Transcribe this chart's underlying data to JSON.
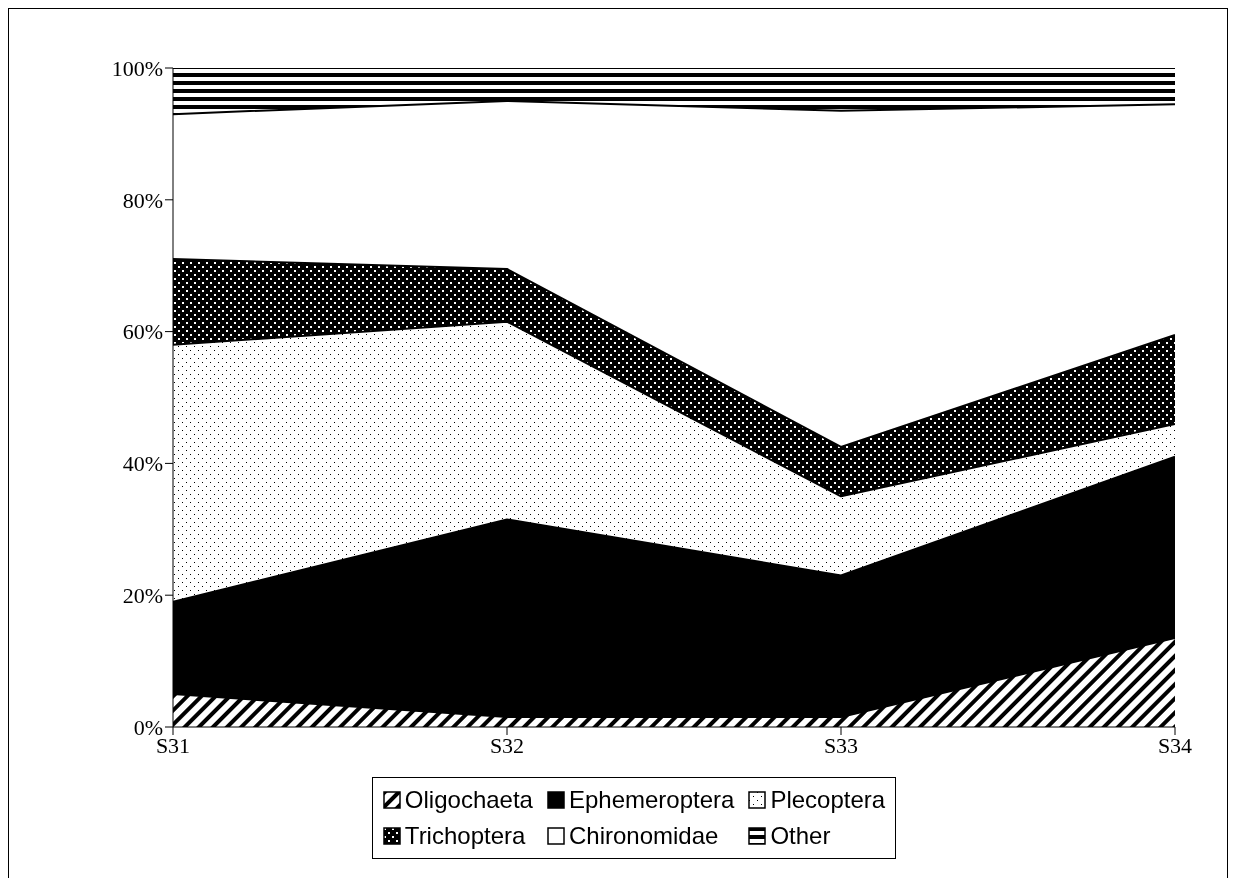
{
  "chart_data": {
    "type": "area",
    "stacked": true,
    "categories": [
      "S31",
      "S32",
      "S33",
      "S34"
    ],
    "series": [
      {
        "name": "Oligochaeta",
        "color": "#000000",
        "values": [
          5,
          1.5,
          1.5,
          13.5
        ]
      },
      {
        "name": "Ephemeroptera",
        "color": "#000000",
        "values": [
          14,
          30,
          21.5,
          27.5
        ]
      },
      {
        "name": "Plecoptera",
        "color": "#000000",
        "values": [
          39,
          30,
          12,
          5
        ]
      },
      {
        "name": "Trichoptera",
        "color": "#000000",
        "values": [
          13,
          8,
          7.5,
          13.5
        ]
      },
      {
        "name": "Chironomidae",
        "color": "#ffffff",
        "values": [
          22,
          25.5,
          51,
          35
        ]
      },
      {
        "name": "Other",
        "color": "#000000",
        "values": [
          7,
          5,
          6.5,
          5.5
        ]
      }
    ],
    "ylim": [
      0,
      100
    ],
    "yticks": [
      {
        "value": 0,
        "label": "0%"
      },
      {
        "value": 20,
        "label": "20%"
      },
      {
        "value": 40,
        "label": "40%"
      },
      {
        "value": 60,
        "label": "60%"
      },
      {
        "value": 80,
        "label": "80%"
      },
      {
        "value": 100,
        "label": "100%"
      }
    ],
    "legend": "bottom",
    "grid": false
  }
}
